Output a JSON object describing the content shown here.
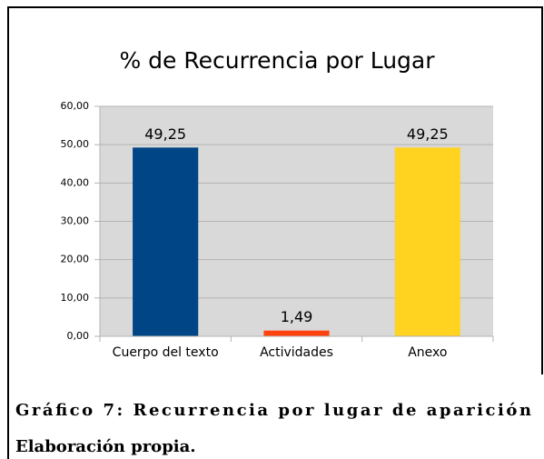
{
  "chart_data": {
    "type": "bar",
    "title": "% de Recurrencia por Lugar",
    "categories": [
      "Cuerpo del texto",
      "Actividades",
      "Anexo"
    ],
    "values": [
      49.25,
      1.49,
      49.25
    ],
    "value_labels": [
      "49,25",
      "1,49",
      "49,25"
    ],
    "colors": [
      "#004586",
      "#ff420e",
      "#ffd320"
    ],
    "ylim": [
      0,
      60
    ],
    "yticks": [
      {
        "value": 0,
        "label": "0,00"
      },
      {
        "value": 10,
        "label": "10,00"
      },
      {
        "value": 20,
        "label": "20,00"
      },
      {
        "value": 30,
        "label": "30,00"
      },
      {
        "value": 40,
        "label": "40,00"
      },
      {
        "value": 50,
        "label": "50,00"
      },
      {
        "value": 60,
        "label": "60,00"
      }
    ],
    "grid": true
  },
  "caption": {
    "line1": "Gráfico 7: Recurrencia por lugar de aparición",
    "line2": "Elaboración propia."
  }
}
